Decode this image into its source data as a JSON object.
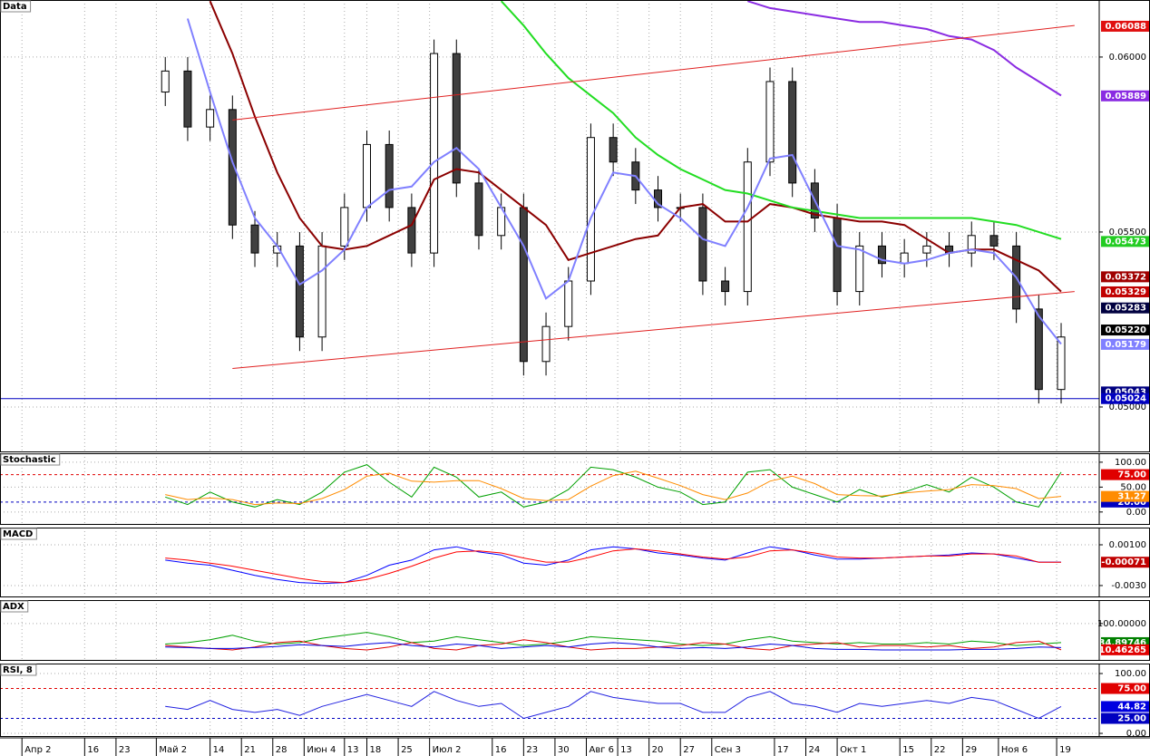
{
  "chart_data": [
    {
      "type": "candlestick",
      "title": "Data",
      "x": [
        32,
        37,
        42,
        47,
        52,
        57,
        62,
        67,
        72,
        77,
        82,
        87,
        92,
        97,
        102,
        107,
        112,
        117,
        122,
        127,
        132,
        137,
        142,
        147,
        152,
        157,
        162,
        167,
        172,
        177,
        182,
        187,
        192,
        197,
        202,
        207,
        212,
        217,
        222,
        227,
        232
      ],
      "open": [
        0.059,
        0.0596,
        0.058,
        0.0585,
        0.0552,
        0.0544,
        0.0546,
        0.052,
        0.0546,
        0.0557,
        0.0575,
        0.0557,
        0.0544,
        0.0601,
        0.0564,
        0.0549,
        0.0557,
        0.0513,
        0.0523,
        0.0536,
        0.0577,
        0.057,
        0.0562,
        0.0557,
        0.0557,
        0.0536,
        0.0533,
        0.057,
        0.0593,
        0.0564,
        0.0554,
        0.0533,
        0.0546,
        0.0541,
        0.0544,
        0.0546,
        0.0544,
        0.0549,
        0.0546,
        0.0528,
        0.0505
      ],
      "high": [
        0.06,
        0.06,
        0.0589,
        0.0589,
        0.0556,
        0.055,
        0.055,
        0.055,
        0.0561,
        0.0579,
        0.0579,
        0.0561,
        0.0605,
        0.0605,
        0.0568,
        0.0561,
        0.0561,
        0.0527,
        0.054,
        0.0581,
        0.0581,
        0.0574,
        0.0566,
        0.0561,
        0.0561,
        0.054,
        0.0574,
        0.0597,
        0.0597,
        0.0568,
        0.0558,
        0.055,
        0.055,
        0.0548,
        0.055,
        0.055,
        0.0553,
        0.0553,
        0.055,
        0.0532,
        0.0524
      ],
      "low": [
        0.0586,
        0.0576,
        0.0576,
        0.0548,
        0.054,
        0.054,
        0.0516,
        0.0516,
        0.0542,
        0.0553,
        0.0553,
        0.054,
        0.054,
        0.056,
        0.0545,
        0.0545,
        0.0509,
        0.0509,
        0.0519,
        0.0532,
        0.0566,
        0.0558,
        0.0553,
        0.0553,
        0.0532,
        0.0529,
        0.0529,
        0.0566,
        0.056,
        0.055,
        0.0529,
        0.0529,
        0.0537,
        0.0537,
        0.054,
        0.054,
        0.054,
        0.0542,
        0.0524,
        0.0501,
        0.0501
      ],
      "close": [
        0.0596,
        0.058,
        0.0585,
        0.0552,
        0.0544,
        0.0546,
        0.052,
        0.0546,
        0.0557,
        0.0575,
        0.0557,
        0.0544,
        0.0601,
        0.0564,
        0.0549,
        0.0557,
        0.0513,
        0.0523,
        0.0536,
        0.0577,
        0.057,
        0.0562,
        0.0557,
        0.0557,
        0.0536,
        0.0533,
        0.057,
        0.0593,
        0.0564,
        0.0554,
        0.0533,
        0.0546,
        0.0541,
        0.0544,
        0.0546,
        0.0544,
        0.0549,
        0.0546,
        0.0528,
        0.0505,
        0.052
      ],
      "up_color": "#ffffff",
      "down_color": "#404040",
      "series": [
        {
          "color": "#8b0000",
          "values": [
            null,
            null,
            0.0616,
            0.0601,
            0.0583,
            0.0567,
            0.0554,
            0.0546,
            0.0545,
            0.0546,
            0.0549,
            0.0552,
            0.0565,
            0.0568,
            0.0567,
            0.0562,
            0.0557,
            0.0552,
            0.0542,
            0.0544,
            0.0546,
            0.0548,
            0.0549,
            0.0557,
            0.0558,
            0.0553,
            0.0553,
            0.0558,
            0.0557,
            0.0555,
            0.0554,
            0.0553,
            0.0553,
            0.0552,
            0.0548,
            0.0544,
            0.0545,
            0.0545,
            0.0542,
            0.0539,
            0.0533
          ]
        },
        {
          "color": "#22dd22",
          "values": [
            null,
            null,
            null,
            null,
            null,
            null,
            null,
            null,
            null,
            null,
            null,
            null,
            null,
            null,
            null,
            0.0616,
            0.0609,
            0.0601,
            0.0594,
            0.0589,
            0.0584,
            0.0577,
            0.0572,
            0.0568,
            0.0565,
            0.0562,
            0.0561,
            0.0559,
            0.0557,
            0.0556,
            0.0555,
            0.0554,
            0.0554,
            0.0554,
            0.0554,
            0.0554,
            0.0554,
            0.0553,
            0.0552,
            0.055,
            0.0548
          ]
        },
        {
          "color": "#8a2be2",
          "values": [
            null,
            null,
            null,
            null,
            null,
            null,
            null,
            null,
            null,
            null,
            null,
            null,
            null,
            null,
            null,
            null,
            null,
            null,
            null,
            null,
            null,
            null,
            null,
            null,
            null,
            null,
            0.0616,
            0.0614,
            0.0613,
            0.0612,
            0.0611,
            0.061,
            0.061,
            0.0609,
            0.0608,
            0.0606,
            0.0605,
            0.0602,
            0.0597,
            0.0593,
            0.0589
          ]
        },
        {
          "color": "#8080ff",
          "values": [
            null,
            0.0611,
            0.059,
            0.057,
            0.0554,
            0.0546,
            0.0535,
            0.0539,
            0.0545,
            0.0557,
            0.0562,
            0.0563,
            0.057,
            0.0574,
            0.0568,
            0.0557,
            0.0546,
            0.0531,
            0.0536,
            0.0554,
            0.0567,
            0.0566,
            0.0558,
            0.0554,
            0.0548,
            0.0546,
            0.0557,
            0.0571,
            0.0572,
            0.0559,
            0.0546,
            0.0545,
            0.0542,
            0.0541,
            0.0542,
            0.0544,
            0.0545,
            0.0544,
            0.0537,
            0.0526,
            0.0518
          ]
        }
      ],
      "trendlines": [
        {
          "color": "#e02020",
          "x": [
            47,
            235
          ],
          "y": [
            0.0511,
            0.0533
          ]
        },
        {
          "color": "#e02020",
          "x": [
            47,
            235
          ],
          "y": [
            0.0582,
            0.0609
          ]
        }
      ],
      "xlim": [
        -4.9,
        240.5
      ],
      "xticks": [
        {
          "value": 0,
          "label": "Апр 2"
        },
        {
          "value": 14,
          "label": "16"
        },
        {
          "value": 21,
          "label": "23"
        },
        {
          "value": 30,
          "label": "Май 2"
        },
        {
          "value": 42,
          "label": "14"
        },
        {
          "value": 49,
          "label": "21"
        },
        {
          "value": 56,
          "label": "28"
        },
        {
          "value": 63,
          "label": "Июн 4"
        },
        {
          "value": 72,
          "label": "13"
        },
        {
          "value": 77,
          "label": "18"
        },
        {
          "value": 84,
          "label": "25"
        },
        {
          "value": 91,
          "label": "Июл 2"
        },
        {
          "value": 105,
          "label": "16"
        },
        {
          "value": 112,
          "label": "23"
        },
        {
          "value": 119,
          "label": "30"
        },
        {
          "value": 126,
          "label": "Авг 6"
        },
        {
          "value": 133,
          "label": "13"
        },
        {
          "value": 140,
          "label": "20"
        },
        {
          "value": 147,
          "label": "27"
        },
        {
          "value": 154,
          "label": "Сен 3"
        },
        {
          "value": 168,
          "label": "17"
        },
        {
          "value": 175,
          "label": "24"
        },
        {
          "value": 182,
          "label": "Окт 1"
        },
        {
          "value": 196,
          "label": "15"
        },
        {
          "value": 203,
          "label": "22"
        },
        {
          "value": 210,
          "label": "29"
        },
        {
          "value": 218,
          "label": "Ноя 6"
        },
        {
          "value": 231,
          "label": "19"
        }
      ],
      "ylim": [
        0.04873,
        0.06163
      ],
      "yticks": [
        {
          "value": 0.05,
          "label": "0.05000"
        },
        {
          "value": 0.055,
          "label": "0.05500"
        },
        {
          "value": 0.06,
          "label": "0.06000"
        }
      ],
      "markers": [
        {
          "value": 0.06088,
          "label": "0.06088",
          "color": "#e01010"
        },
        {
          "value": 0.05889,
          "label": "0.05889",
          "color": "#8a2be2"
        },
        {
          "value": 0.05473,
          "label": "0.05473",
          "color": "#22cc22"
        },
        {
          "value": 0.05372,
          "label": "0.05372",
          "color": "#a00000"
        },
        {
          "value": 0.05329,
          "label": "0.05329",
          "color": "#c00000"
        },
        {
          "value": 0.05283,
          "label": "0.05283",
          "color": "#000040"
        },
        {
          "value": 0.0522,
          "label": "0.05220",
          "color": "#000000"
        },
        {
          "value": 0.05179,
          "label": "0.05179",
          "color": "#8080ff"
        },
        {
          "value": 0.05043,
          "label": "0.05043",
          "color": "#000080"
        },
        {
          "value": 0.05024,
          "label": "0.05024",
          "color": "#0000c0",
          "line": "solid"
        }
      ],
      "grid": true
    },
    {
      "type": "line",
      "title": "Stochastic",
      "series": [
        {
          "color": "#00a000",
          "values": [
            30,
            15,
            40,
            20,
            10,
            25,
            15,
            40,
            80,
            95,
            60,
            30,
            90,
            70,
            30,
            40,
            10,
            20,
            45,
            90,
            85,
            70,
            50,
            40,
            15,
            20,
            80,
            85,
            50,
            35,
            20,
            45,
            30,
            40,
            55,
            40,
            70,
            50,
            20,
            10,
            80
          ]
        },
        {
          "color": "#ff8c00",
          "values": [
            35,
            25,
            28,
            25,
            15,
            18,
            17,
            27,
            45,
            72,
            78,
            62,
            60,
            63,
            63,
            47,
            27,
            23,
            25,
            52,
            73,
            82,
            68,
            53,
            35,
            25,
            38,
            62,
            72,
            57,
            35,
            33,
            32,
            38,
            42,
            45,
            55,
            53,
            47,
            27,
            31.27
          ]
        }
      ],
      "ylim": [
        -24,
        118
      ],
      "yticks": [
        {
          "value": 100,
          "label": "100.00"
        },
        {
          "value": 50,
          "label": "50.00"
        },
        {
          "value": 0,
          "label": "0.00"
        }
      ],
      "markers": [
        {
          "value": 75,
          "label": "75.00",
          "color": "#e00000",
          "line": "dashed"
        },
        {
          "value": 20,
          "label": "20.00",
          "color": "#0000c0",
          "line": "dashed"
        },
        {
          "value": 31.27,
          "label": "31.27",
          "color": "#ff8c00"
        }
      ],
      "grid": true
    },
    {
      "type": "line",
      "title": "MACD",
      "series": [
        {
          "color": "#0000ff",
          "values": [
            -0.0005,
            -0.0008,
            -0.001,
            -0.0015,
            -0.002,
            -0.0024,
            -0.0027,
            -0.0028,
            -0.0027,
            -0.002,
            -0.001,
            -0.0005,
            0.0005,
            0.0008,
            0.0003,
            0.0,
            -0.0008,
            -0.001,
            -0.0005,
            0.0005,
            0.0008,
            0.0006,
            0.0002,
            0.0,
            -0.0003,
            -0.0005,
            0.0002,
            0.0008,
            0.0005,
            0.0,
            -0.0004,
            -0.0004,
            -0.0003,
            -0.0002,
            -0.0001,
            0.0,
            0.0002,
            0.0001,
            -0.0003,
            -0.0007,
            -0.0007
          ]
        },
        {
          "color": "#ff0000",
          "values": [
            -0.0003,
            -0.0005,
            -0.0008,
            -0.0011,
            -0.0015,
            -0.0019,
            -0.0023,
            -0.0026,
            -0.0027,
            -0.0024,
            -0.0018,
            -0.0011,
            -0.0003,
            0.0003,
            0.0004,
            0.0002,
            -0.0003,
            -0.0007,
            -0.0007,
            -0.0002,
            0.0004,
            0.0006,
            0.0004,
            0.0001,
            -0.0002,
            -0.0004,
            -0.0002,
            0.0004,
            0.0005,
            0.0002,
            -0.0002,
            -0.0003,
            -0.0003,
            -0.0002,
            -0.0001,
            -0.0001,
            0.0001,
            0.0001,
            -0.0001,
            -0.00071,
            -0.00071
          ]
        }
      ],
      "ylim": [
        -0.00407,
        0.00269
      ],
      "yticks": [
        {
          "value": 0.001,
          "label": "0.00100"
        },
        {
          "value": -0.003,
          "label": "-0.0030"
        }
      ],
      "markers": [
        {
          "value": -0.00071,
          "label": "-0.00071",
          "color": "#c00000"
        }
      ],
      "grid": true
    },
    {
      "type": "line",
      "title": "ADX",
      "series": [
        {
          "color": "#00a000",
          "values": [
            30,
            35,
            45,
            60,
            40,
            30,
            35,
            50,
            60,
            70,
            55,
            35,
            40,
            55,
            45,
            35,
            25,
            30,
            40,
            55,
            50,
            45,
            40,
            30,
            25,
            30,
            45,
            55,
            40,
            35,
            30,
            35,
            30,
            30,
            35,
            30,
            40,
            35,
            25,
            30,
            34.89746
          ]
        },
        {
          "color": "#e00000",
          "values": [
            25,
            20,
            15,
            10,
            20,
            35,
            40,
            25,
            15,
            10,
            20,
            35,
            15,
            10,
            25,
            30,
            45,
            35,
            20,
            10,
            15,
            15,
            20,
            25,
            35,
            30,
            15,
            10,
            25,
            30,
            35,
            20,
            25,
            25,
            20,
            25,
            15,
            20,
            35,
            40,
            10.46265
          ]
        },
        {
          "color": "#0000e0",
          "values": [
            20,
            18,
            15,
            15,
            18,
            22,
            28,
            25,
            22,
            30,
            35,
            25,
            20,
            30,
            25,
            15,
            20,
            25,
            20,
            30,
            35,
            30,
            20,
            15,
            18,
            15,
            20,
            30,
            25,
            15,
            12,
            12,
            10,
            10,
            10,
            10,
            12,
            12,
            15,
            20,
            18
          ]
        }
      ],
      "ylim": [
        -24,
        180
      ],
      "yticks": [
        {
          "value": 100,
          "label": "100.00000"
        }
      ],
      "markers": [
        {
          "value": 34.89746,
          "label": "34.89746",
          "color": "#008000"
        },
        {
          "value": 10.46265,
          "label": "10.46265",
          "color": "#e00000"
        }
      ],
      "grid": true
    },
    {
      "type": "line",
      "title": "RSI, 8",
      "series": [
        {
          "color": "#2020e0",
          "values": [
            45,
            40,
            55,
            40,
            35,
            40,
            30,
            45,
            55,
            65,
            55,
            45,
            70,
            55,
            45,
            50,
            25,
            35,
            45,
            70,
            60,
            55,
            50,
            50,
            35,
            35,
            60,
            70,
            50,
            45,
            35,
            50,
            45,
            50,
            55,
            50,
            60,
            55,
            40,
            25,
            44.82
          ]
        }
      ],
      "ylim": [
        -4.5,
        116.7
      ],
      "yticks": [
        {
          "value": 100,
          "label": "100.00"
        },
        {
          "value": 0,
          "label": "0.00"
        }
      ],
      "markers": [
        {
          "value": 75,
          "label": "75.00",
          "color": "#e00000",
          "line": "dashed"
        },
        {
          "value": 25,
          "label": "25.00",
          "color": "#0000c0",
          "line": "dashed"
        },
        {
          "value": 44.82,
          "label": "44.82",
          "color": "#0000e0"
        }
      ],
      "grid": true
    }
  ]
}
